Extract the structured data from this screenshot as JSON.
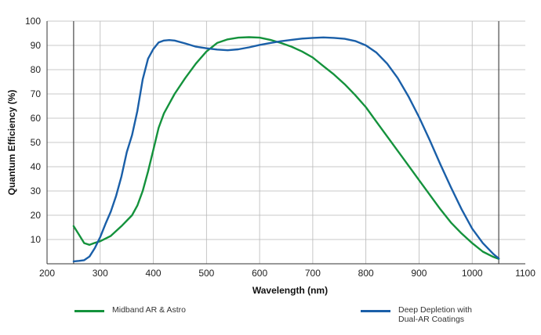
{
  "chart_data": {
    "type": "line",
    "title": "",
    "xlabel": "Wavelength (nm)",
    "ylabel": "Quantum Efficiency (%)",
    "xlim": [
      200,
      1100
    ],
    "ylim": [
      0,
      100
    ],
    "x_ticks": [
      200,
      300,
      400,
      500,
      600,
      700,
      800,
      900,
      1000,
      1100
    ],
    "y_ticks": [
      10,
      20,
      30,
      40,
      50,
      60,
      70,
      80,
      90,
      100
    ],
    "grid": true,
    "legend_position": "bottom",
    "series": [
      {
        "name": "Midband AR & Astro",
        "color": "#14923c",
        "points": [
          [
            250,
            15.5
          ],
          [
            260,
            12
          ],
          [
            270,
            8.5
          ],
          [
            280,
            7.8
          ],
          [
            290,
            8.6
          ],
          [
            300,
            9.3
          ],
          [
            320,
            11.5
          ],
          [
            340,
            15.5
          ],
          [
            360,
            20
          ],
          [
            370,
            24
          ],
          [
            380,
            30
          ],
          [
            390,
            38
          ],
          [
            400,
            47
          ],
          [
            410,
            56
          ],
          [
            420,
            62
          ],
          [
            440,
            70
          ],
          [
            460,
            76.5
          ],
          [
            480,
            82.5
          ],
          [
            500,
            87.5
          ],
          [
            520,
            91
          ],
          [
            540,
            92.5
          ],
          [
            560,
            93.2
          ],
          [
            580,
            93.4
          ],
          [
            600,
            93.2
          ],
          [
            620,
            92.3
          ],
          [
            640,
            91
          ],
          [
            660,
            89.5
          ],
          [
            680,
            87.5
          ],
          [
            700,
            85
          ],
          [
            720,
            81.5
          ],
          [
            740,
            78
          ],
          [
            760,
            74
          ],
          [
            780,
            69.5
          ],
          [
            800,
            64.5
          ],
          [
            820,
            58.5
          ],
          [
            840,
            52.5
          ],
          [
            860,
            46.5
          ],
          [
            880,
            40.5
          ],
          [
            900,
            34.5
          ],
          [
            920,
            28.5
          ],
          [
            940,
            22.5
          ],
          [
            960,
            17
          ],
          [
            980,
            12.5
          ],
          [
            1000,
            8.5
          ],
          [
            1020,
            5
          ],
          [
            1040,
            2.8
          ],
          [
            1050,
            2
          ]
        ]
      },
      {
        "name": "Deep Depletion with\nDual-AR Coatings",
        "color": "#1a5fa8",
        "points": [
          [
            250,
            1
          ],
          [
            260,
            1.2
          ],
          [
            270,
            1.5
          ],
          [
            280,
            3
          ],
          [
            290,
            6.5
          ],
          [
            300,
            11
          ],
          [
            310,
            16.5
          ],
          [
            320,
            21.5
          ],
          [
            330,
            28
          ],
          [
            340,
            36
          ],
          [
            350,
            46
          ],
          [
            360,
            53
          ],
          [
            370,
            63
          ],
          [
            380,
            76
          ],
          [
            390,
            84.5
          ],
          [
            400,
            88.5
          ],
          [
            410,
            91.2
          ],
          [
            420,
            92
          ],
          [
            430,
            92.2
          ],
          [
            440,
            92
          ],
          [
            460,
            90.8
          ],
          [
            480,
            89.5
          ],
          [
            500,
            88.8
          ],
          [
            520,
            88.3
          ],
          [
            540,
            88
          ],
          [
            560,
            88.4
          ],
          [
            580,
            89.2
          ],
          [
            600,
            90.2
          ],
          [
            620,
            91
          ],
          [
            640,
            91.7
          ],
          [
            660,
            92.3
          ],
          [
            680,
            92.8
          ],
          [
            700,
            93.1
          ],
          [
            720,
            93.3
          ],
          [
            740,
            93.1
          ],
          [
            760,
            92.7
          ],
          [
            780,
            91.8
          ],
          [
            800,
            90
          ],
          [
            820,
            87
          ],
          [
            840,
            82.5
          ],
          [
            860,
            76.5
          ],
          [
            880,
            69
          ],
          [
            900,
            60.5
          ],
          [
            920,
            51
          ],
          [
            940,
            41
          ],
          [
            960,
            31.5
          ],
          [
            980,
            22.5
          ],
          [
            1000,
            14.5
          ],
          [
            1020,
            8.5
          ],
          [
            1040,
            4
          ],
          [
            1050,
            2.2
          ]
        ]
      }
    ]
  }
}
